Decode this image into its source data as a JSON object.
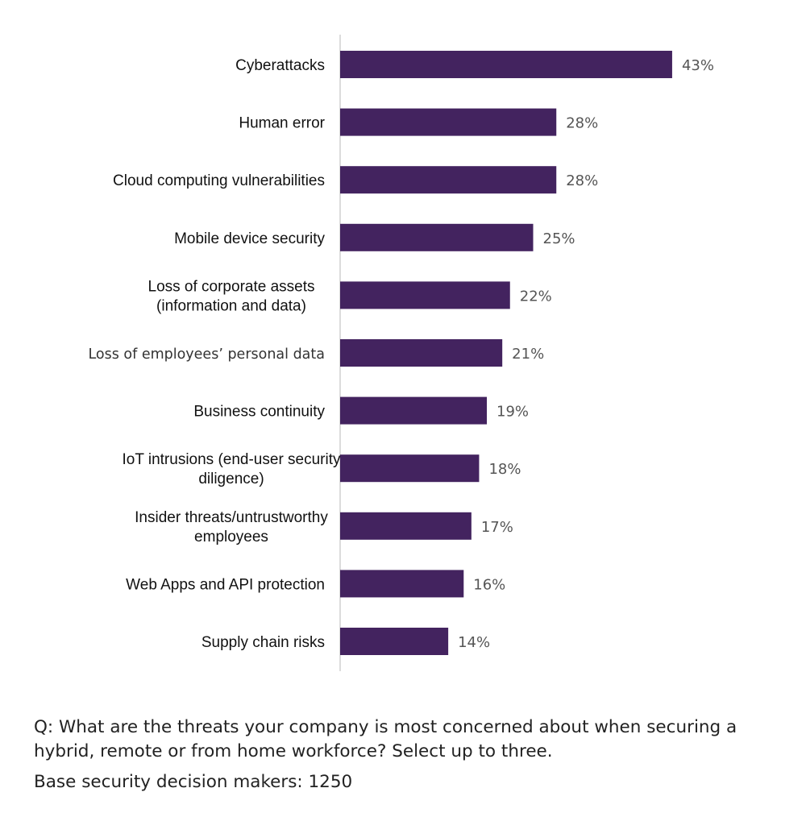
{
  "chart_data": {
    "type": "bar",
    "orientation": "horizontal",
    "categories": [
      "Cyberattacks",
      "Human error",
      "Cloud computing vulnerabilities",
      "Mobile device security",
      "Loss of corporate assets (information and data)",
      "Loss of employees’ personal data",
      "Business continuity",
      "IoT intrusions (end-user security diligence)",
      "Insider threats/untrustworthy employees",
      "Web Apps and API protection",
      "Supply chain risks"
    ],
    "category_lines": [
      [
        "Cyberattacks"
      ],
      [
        "Human error"
      ],
      [
        "Cloud computing vulnerabilities"
      ],
      [
        "Mobile device security"
      ],
      [
        "Loss of corporate assets",
        "(information and data)"
      ],
      [
        "Loss of employees’ personal data"
      ],
      [
        "Business continuity"
      ],
      [
        "IoT intrusions (end-user security",
        "diligence)"
      ],
      [
        "Insider threats/untrustworthy",
        "employees"
      ],
      [
        "Web Apps and API protection"
      ],
      [
        "Supply chain risks"
      ]
    ],
    "values": [
      43,
      28,
      28,
      25,
      22,
      21,
      19,
      18,
      17,
      16,
      14
    ],
    "value_labels": [
      "43%",
      "28%",
      "28%",
      "25%",
      "22%",
      "21%",
      "19%",
      "18%",
      "17%",
      "16%",
      "14%"
    ],
    "unit": "%",
    "bar_color": "#43235f",
    "axis_color": "#d0d0d0",
    "grid": false,
    "legend": "none"
  },
  "footnote": {
    "question": "Q: What are the threats your company is most concerned about when securing a hybrid, remote or from home workforce? Select up to three.",
    "base": "Base security decision makers: 1250"
  }
}
